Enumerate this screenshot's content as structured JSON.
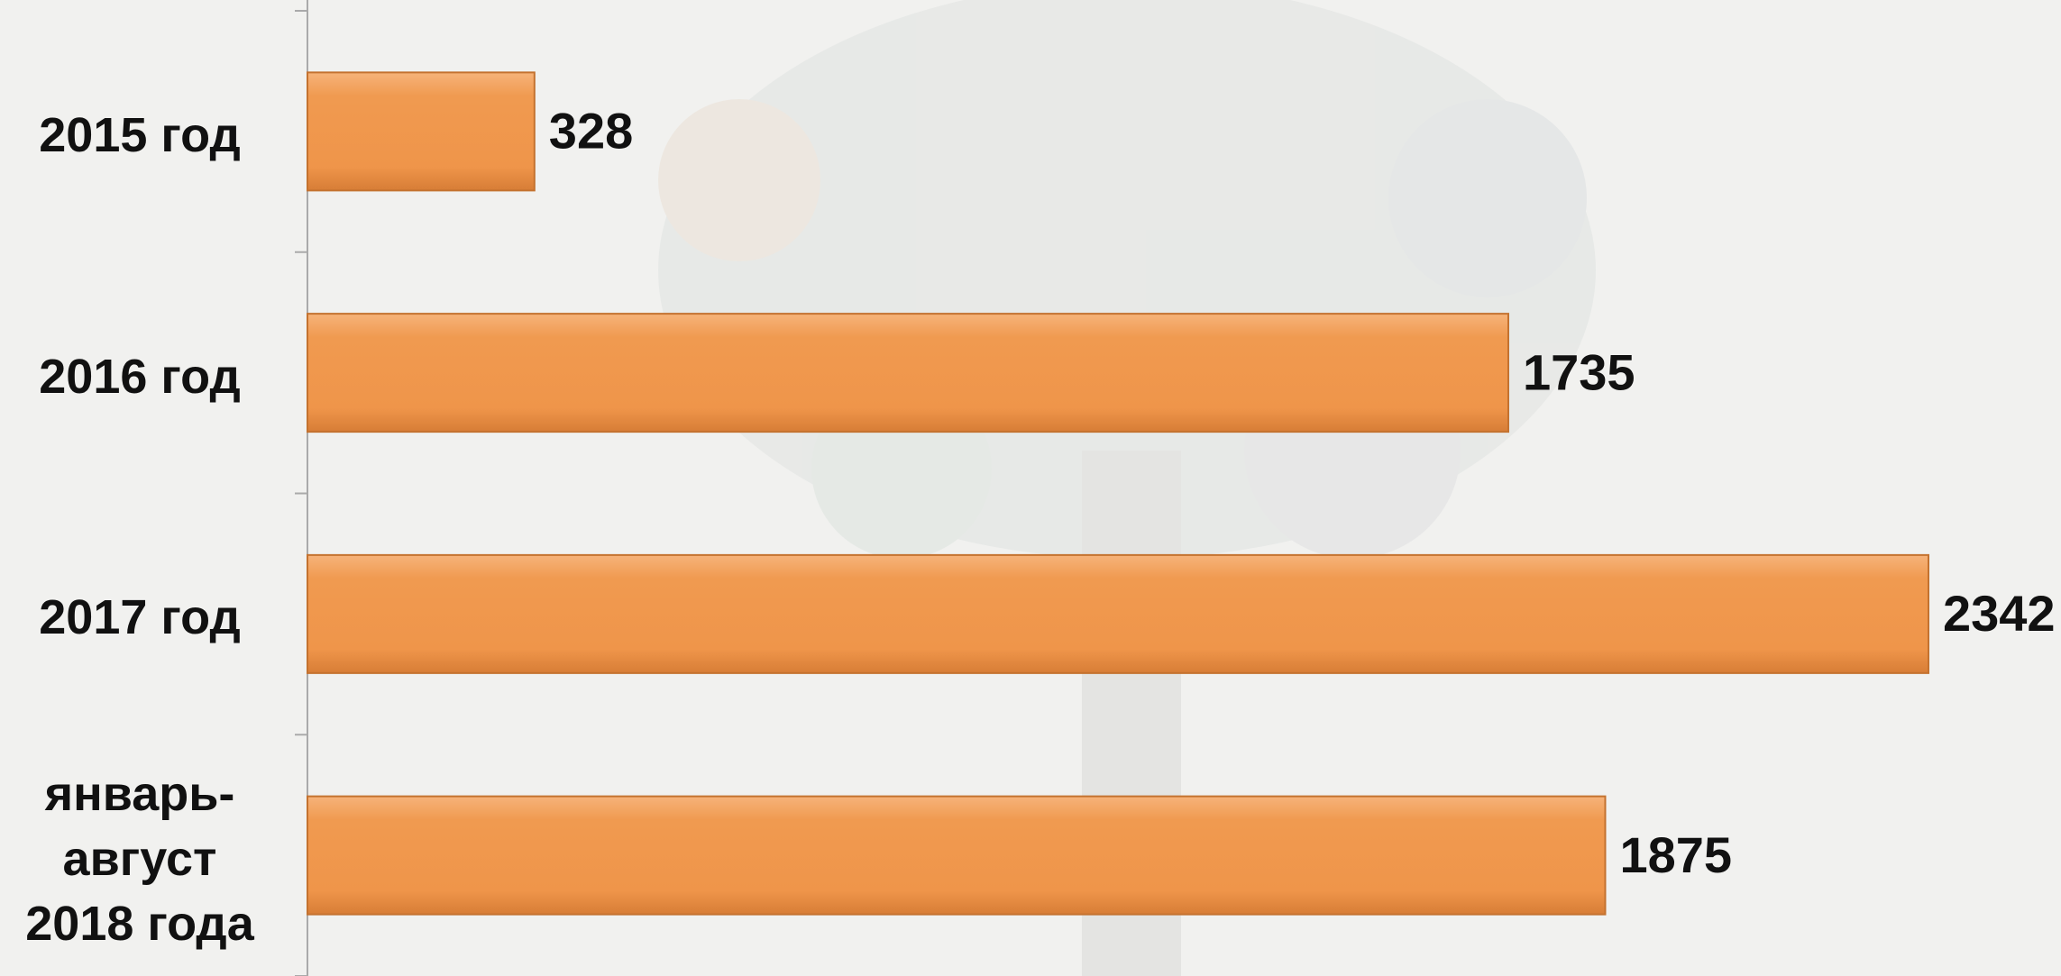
{
  "chart_data": {
    "type": "hbar",
    "categories": [
      "2015 год",
      "2016 год",
      "2017 год",
      "январь-август 2018 года"
    ],
    "values": [
      328,
      1735,
      2342,
      1875
    ],
    "color": "#f0994e"
  }
}
